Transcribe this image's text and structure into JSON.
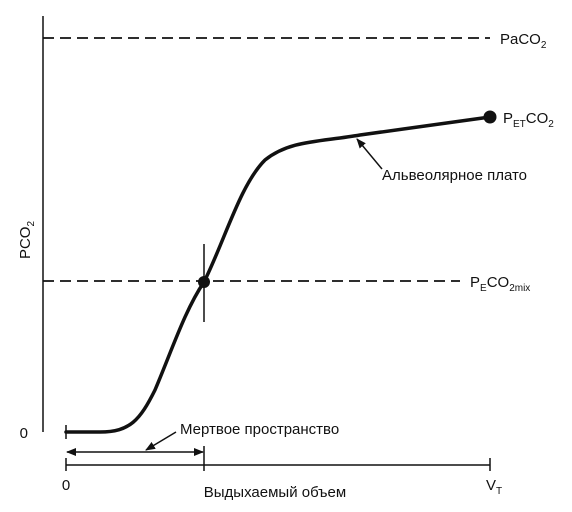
{
  "colors": {
    "ink": "#111111",
    "background": "#ffffff"
  },
  "axes": {
    "y_label": {
      "main": "PCO",
      "sub": "2"
    },
    "y_zero_label": "0",
    "x_zero_label": "0",
    "x_label": "Выдыхаемый объем",
    "x_end_label": {
      "main": "V",
      "sub": "T"
    }
  },
  "lines": {
    "paco2": {
      "pre": "PaCO",
      "sub": "2"
    },
    "pe_co2_mix": {
      "p": "P",
      "sub1": "E",
      "co": "CO",
      "sub2": "2mix"
    }
  },
  "curve_end": {
    "p": "P",
    "sub1": "ET",
    "co": "CO",
    "sub2": "2"
  },
  "annotations": {
    "plateau": "Альвеолярное плато",
    "dead_space": "Мертвое пространство"
  }
}
